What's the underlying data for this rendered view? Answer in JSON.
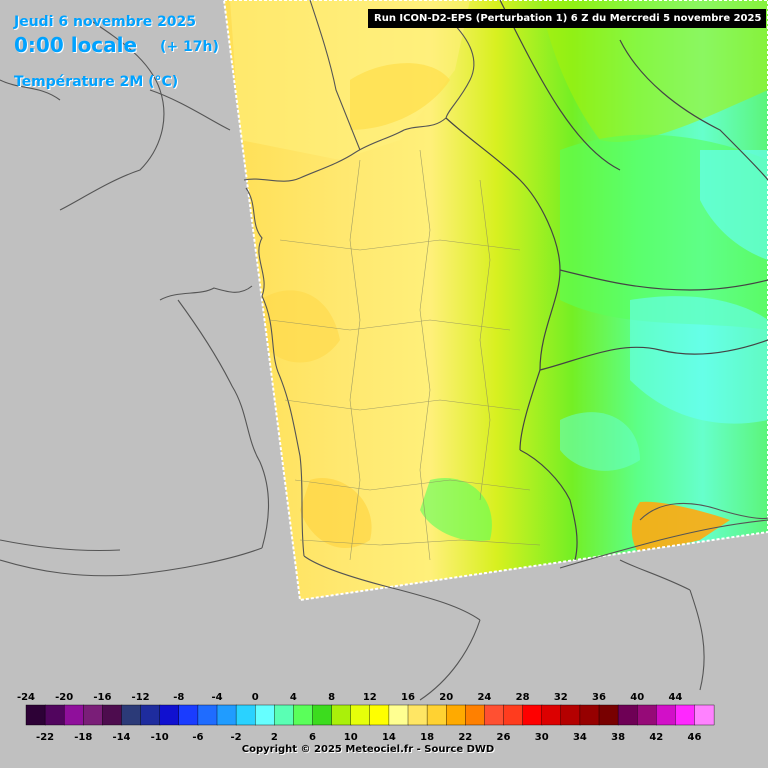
{
  "header": {
    "date": "Jeudi 6 novembre 2025",
    "time": "0:00 locale",
    "lead": "(+ 17h)",
    "parameter": "Température 2M (°C)",
    "run": "Run ICON-D2-EPS (Perturbation 1) 6 Z du Mercredi 5 novembre 2025"
  },
  "colors": {
    "title": "#00a2ff",
    "land_outside": "#c0c0c0",
    "border_lines": "#555555"
  },
  "legend": {
    "top_labels": [
      "-24",
      "-20",
      "-16",
      "-12",
      "-8",
      "-4",
      "0",
      "4",
      "8",
      "12",
      "16",
      "20",
      "24",
      "28",
      "32",
      "36",
      "40",
      "44"
    ],
    "bottom_labels": [
      "-22",
      "-18",
      "-14",
      "-10",
      "-6",
      "-2",
      "2",
      "6",
      "10",
      "14",
      "18",
      "22",
      "26",
      "30",
      "34",
      "38",
      "42",
      "46"
    ],
    "colors": [
      "#2d0136",
      "#51055e",
      "#8f0f9b",
      "#7a1e78",
      "#4d0c4e",
      "#2b3a78",
      "#1e2c9e",
      "#1010d0",
      "#1a3cff",
      "#1f6cff",
      "#209cff",
      "#2ad2ff",
      "#66ffff",
      "#5affb4",
      "#5aff5a",
      "#3cdc1e",
      "#aaf00a",
      "#e6ff0a",
      "#ffff00",
      "#ffff91",
      "#ffe664",
      "#ffd232",
      "#ffaa00",
      "#ff8000",
      "#ff5032",
      "#ff3c1e",
      "#ff0000",
      "#dc0000",
      "#b40000",
      "#960000",
      "#780000",
      "#6e0055",
      "#960a78",
      "#d20fc8",
      "#ff28ff",
      "#ff82ff"
    ]
  },
  "copyright": "Copyright © 2025 Meteociel.fr - Source DWD"
}
